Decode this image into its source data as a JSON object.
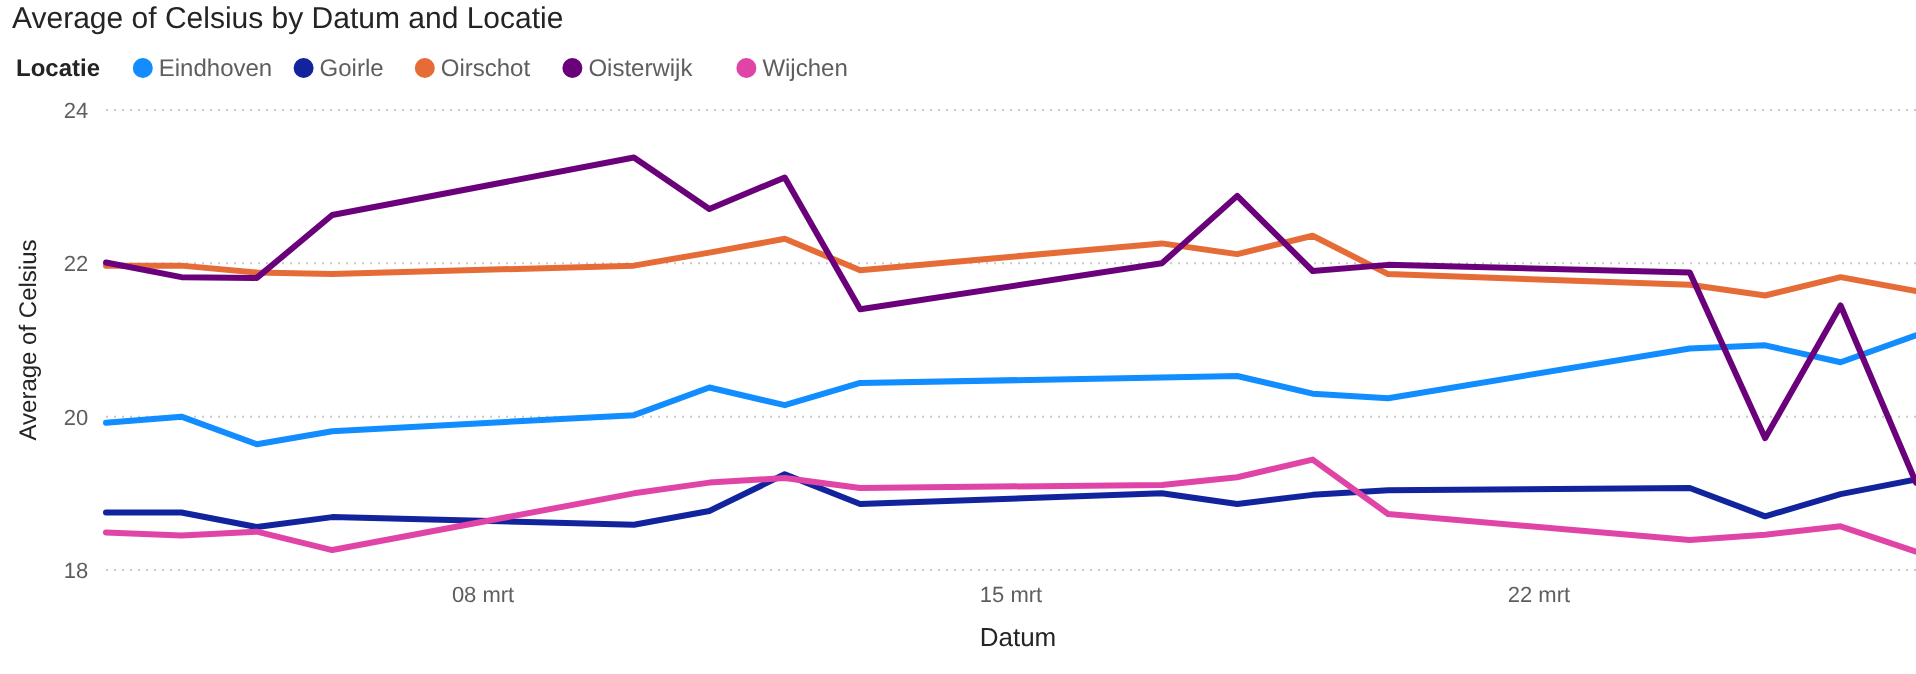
{
  "chart_data": {
    "type": "line",
    "title": "Average of Celsius by Datum and Locatie",
    "xlabel": "Datum",
    "ylabel": "Average of Celsius",
    "legend_title": "Locatie",
    "legend": "top left",
    "grid": "y",
    "marker": "none",
    "line_style": "solid",
    "x": [
      "--03-03",
      "--03-04",
      "--03-05",
      "--03-06",
      "--03-10",
      "--03-11",
      "--03-12",
      "--03-13",
      "--03-17",
      "--03-18",
      "--03-19",
      "--03-20",
      "--03-24",
      "--03-25",
      "--03-26",
      "--03-27"
    ],
    "xlim": [
      "--03-03",
      "--03-27"
    ],
    "xticks": [
      {
        "value": "--03-08",
        "label": "08 mrt"
      },
      {
        "value": "--03-15",
        "label": "15 mrt"
      },
      {
        "value": "--03-22",
        "label": "22 mrt"
      }
    ],
    "ylim": [
      18,
      24
    ],
    "yticks": [
      18,
      20,
      22,
      24
    ],
    "series": [
      {
        "name": "Eindhoven",
        "color": "#118dff",
        "values": [
          19.92,
          20.0,
          19.64,
          19.81,
          20.02,
          20.38,
          20.15,
          20.44,
          20.51,
          20.53,
          20.3,
          20.24,
          20.89,
          20.93,
          20.71,
          21.06
        ]
      },
      {
        "name": "Goirle",
        "color": "#12239e",
        "values": [
          18.75,
          18.75,
          18.56,
          18.69,
          18.59,
          18.77,
          19.25,
          18.86,
          19.0,
          18.86,
          18.98,
          19.04,
          19.07,
          18.7,
          18.99,
          19.18
        ]
      },
      {
        "name": "Oirschot",
        "color": "#e66c37",
        "values": [
          21.97,
          21.97,
          21.88,
          21.86,
          21.97,
          22.14,
          22.32,
          21.91,
          22.26,
          22.12,
          22.36,
          21.86,
          21.72,
          21.58,
          21.82,
          21.64
        ]
      },
      {
        "name": "Oisterwijk",
        "color": "#6b007b",
        "values": [
          22.01,
          21.82,
          21.81,
          22.63,
          23.38,
          22.71,
          23.12,
          21.4,
          22.0,
          22.88,
          21.9,
          21.98,
          21.88,
          19.72,
          21.45,
          19.14
        ]
      },
      {
        "name": "Wijchen",
        "color": "#e044a7",
        "values": [
          18.49,
          18.45,
          18.5,
          18.26,
          19.0,
          19.14,
          19.2,
          19.07,
          19.11,
          19.21,
          19.44,
          18.73,
          18.39,
          18.46,
          18.57,
          18.24
        ]
      }
    ]
  }
}
